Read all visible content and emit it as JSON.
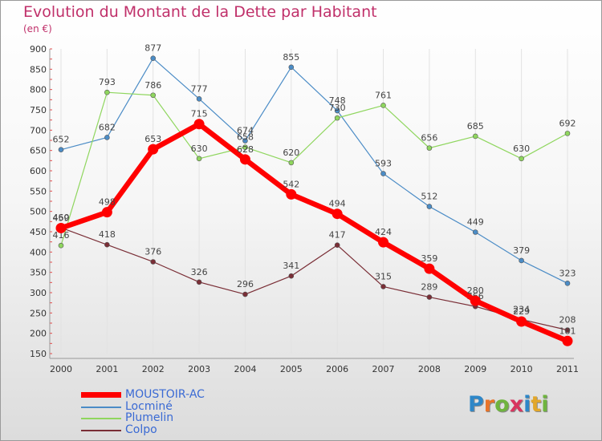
{
  "title": "Evolution du Montant de la Dette par Habitant",
  "subtitle": "(en €)",
  "logo": {
    "text": "Proxiti",
    "colors": [
      "#2e87c8",
      "#e8742a",
      "#6fb43f",
      "#d8355f",
      "#2e87c8",
      "#e2a72b",
      "#6fb43f"
    ]
  },
  "chart_data": {
    "type": "line",
    "title": "Evolution du Montant de la Dette par Habitant",
    "subtitle": "(en €)",
    "xlabel": "",
    "ylabel": "",
    "x": [
      "2000",
      "2001",
      "2002",
      "2003",
      "2004",
      "2005",
      "2006",
      "2007",
      "2008",
      "2009",
      "2010",
      "2011"
    ],
    "ylim": [
      150,
      900
    ],
    "yticks": [
      150,
      200,
      250,
      300,
      350,
      400,
      450,
      500,
      550,
      600,
      650,
      700,
      750,
      800,
      850,
      900
    ],
    "grid": "vertical",
    "legend": "bottom-left",
    "series": [
      {
        "name": "Locminé",
        "color": "#4b8cc6",
        "values": [
          652,
          682,
          877,
          777,
          674,
          855,
          748,
          593,
          512,
          449,
          379,
          323
        ]
      },
      {
        "name": "Plumelin",
        "color": "#8fd65e",
        "values": [
          416,
          793,
          786,
          630,
          658,
          620,
          730,
          761,
          656,
          685,
          630,
          692
        ]
      },
      {
        "name": "Colpo",
        "color": "#7a2e36",
        "values": [
          460,
          418,
          376,
          326,
          296,
          341,
          417,
          315,
          289,
          266,
          234,
          208
        ]
      },
      {
        "name": "MOUSTOIR-AC",
        "color": "#ff0000",
        "values": [
          459,
          498,
          653,
          715,
          628,
          542,
          494,
          424,
          359,
          280,
          229,
          181
        ]
      }
    ]
  }
}
